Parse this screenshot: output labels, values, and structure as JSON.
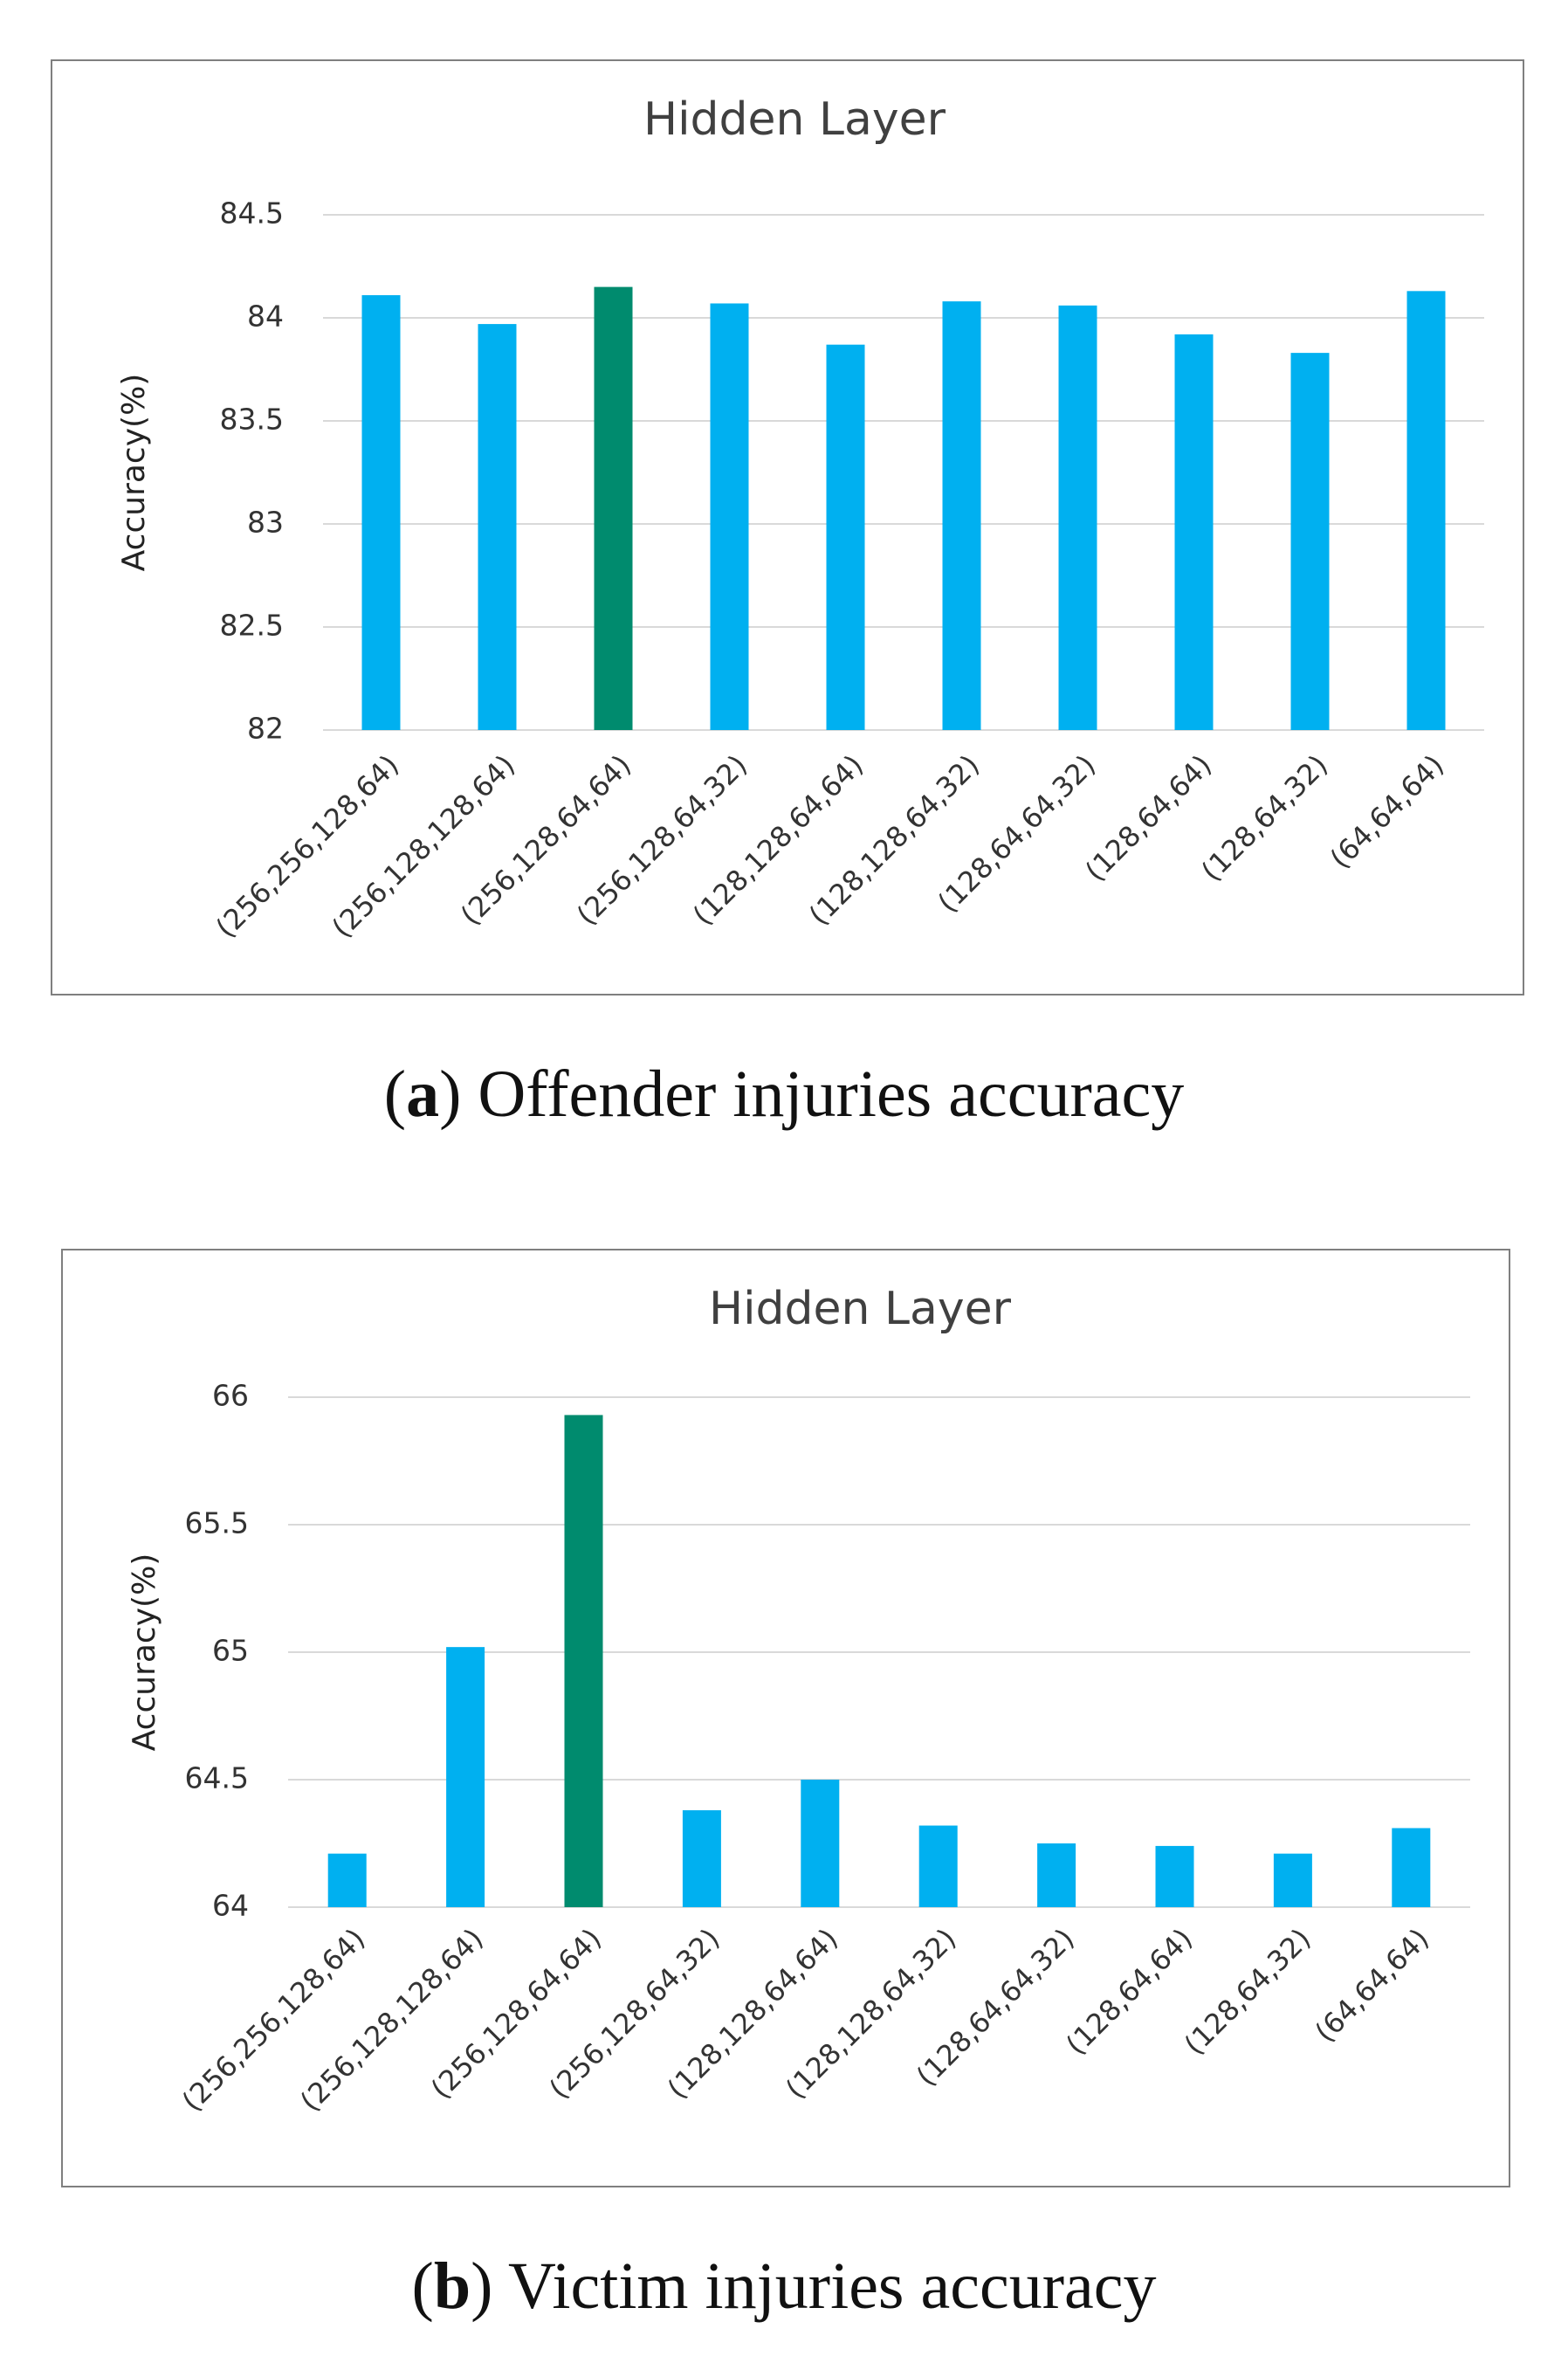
{
  "chart_data": [
    {
      "type": "bar",
      "title": "Hidden Layer",
      "xlabel": "",
      "ylabel": "Accuracy(%)",
      "ylim": [
        82,
        84.5
      ],
      "yticks": [
        82,
        82.5,
        83,
        83.5,
        84,
        84.5
      ],
      "yticks_text": [
        "82",
        "82.5",
        "83",
        "83.5",
        "84",
        "84.5"
      ],
      "grid": true,
      "categories": [
        "(256,256,128,64)",
        "(256,128,128,64)",
        "(256,128,64,64)",
        "(256,128,64,32)",
        "(128,128,64,64)",
        "(128,128,64,32)",
        "(128,64,64,32)",
        "(128,64,64)",
        "(128,64,32)",
        "(64,64,64)"
      ],
      "values": [
        84.11,
        83.97,
        84.15,
        84.07,
        83.87,
        84.08,
        84.06,
        83.92,
        83.83,
        84.13
      ],
      "highlight_index": 2,
      "bar_color": "#00b0f0",
      "highlight_color": "#008b6e"
    },
    {
      "type": "bar",
      "title": "Hidden Layer",
      "xlabel": "",
      "ylabel": "Accuracy(%)",
      "ylim": [
        64,
        66
      ],
      "yticks": [
        64,
        64.5,
        65,
        65.5,
        66
      ],
      "yticks_text": [
        "64",
        "64.5",
        "65",
        "65.5",
        "66"
      ],
      "grid": true,
      "categories": [
        "(256,256,128,64)",
        "(256,128,128,64)",
        "(256,128,64,64)",
        "(256,128,64,32)",
        "(128,128,64,64)",
        "(128,128,64,32)",
        "(128,64,64,32)",
        "(128,64,64)",
        "(128,64,32)",
        "(64,64,64)"
      ],
      "values": [
        64.21,
        65.02,
        65.93,
        64.38,
        64.5,
        64.32,
        64.25,
        64.24,
        64.21,
        64.31
      ],
      "highlight_index": 2,
      "bar_color": "#00b0f0",
      "highlight_color": "#008b6e"
    }
  ],
  "captions": [
    {
      "letter": "a",
      "text": " Offender injuries accuracy"
    },
    {
      "letter": "b",
      "text": " Victim injuries accuracy"
    }
  ]
}
